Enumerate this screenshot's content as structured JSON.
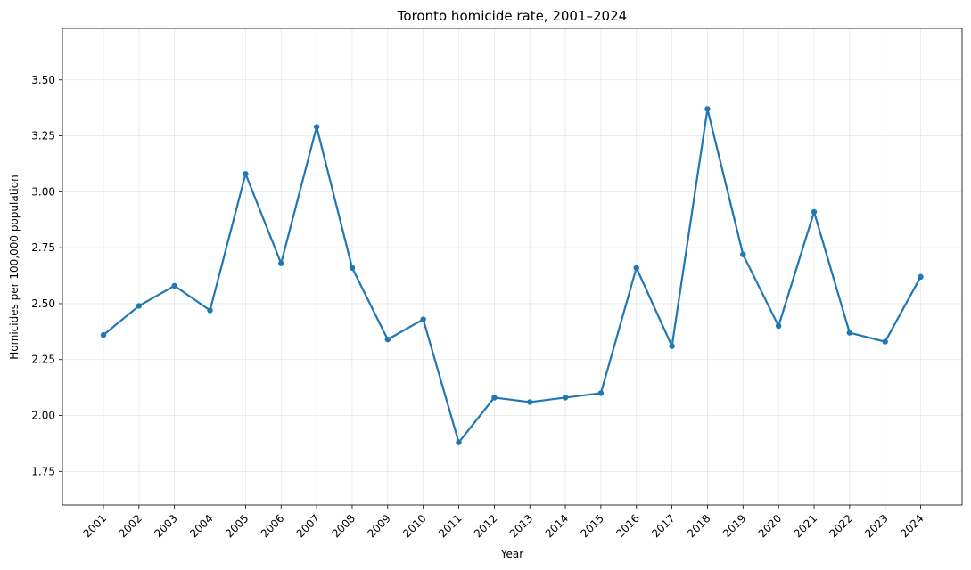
{
  "chart_data": {
    "type": "line",
    "title": "Toronto homicide rate, 2001–2024",
    "xlabel": "Year",
    "ylabel": "Homicides per 100,000 population",
    "x": [
      "2001",
      "2002",
      "2003",
      "2004",
      "2005",
      "2006",
      "2007",
      "2008",
      "2009",
      "2010",
      "2011",
      "2012",
      "2013",
      "2014",
      "2015",
      "2016",
      "2017",
      "2018",
      "2019",
      "2020",
      "2021",
      "2022",
      "2023",
      "2024"
    ],
    "series": [
      {
        "name": "",
        "color": "#1f77b4",
        "values": [
          2.36,
          2.49,
          2.58,
          2.47,
          3.08,
          2.68,
          3.29,
          2.66,
          2.34,
          2.43,
          1.88,
          2.08,
          2.06,
          2.08,
          2.1,
          2.66,
          2.31,
          3.37,
          2.72,
          2.4,
          2.91,
          2.37,
          2.33,
          2.62
        ]
      }
    ],
    "ylim": [
      1.6,
      3.73
    ],
    "yticks": [
      "1.75",
      "2.00",
      "2.25",
      "2.50",
      "2.75",
      "3.00",
      "3.25",
      "3.50"
    ],
    "grid": true
  }
}
